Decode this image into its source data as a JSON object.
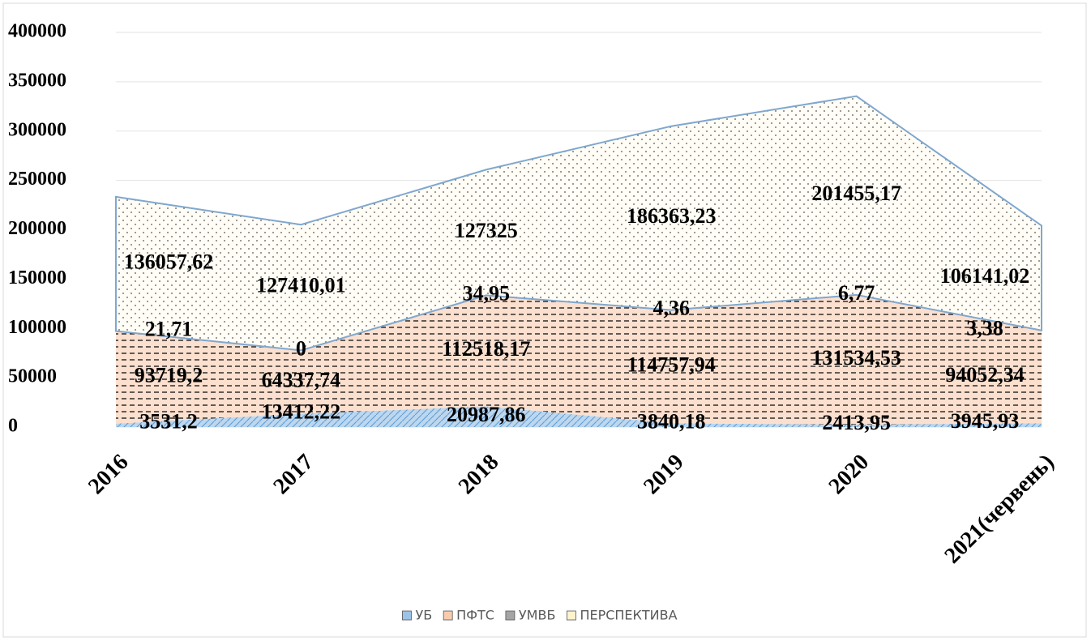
{
  "chart_data": {
    "type": "stacked_area",
    "categories": [
      "2016",
      "2017",
      "2018",
      "2019",
      "2020",
      "2021(червень)"
    ],
    "series": [
      {
        "name": "УБ",
        "color": "#9dc3e6",
        "values": [
          3531.2,
          13412.22,
          20987.86,
          3840.18,
          2413.95,
          3945.93
        ],
        "value_labels": [
          "3531,2",
          "13412,22",
          "20987,86",
          "3840,18",
          "2413,95",
          "3945,93"
        ]
      },
      {
        "name": "ПФТС",
        "color": "#f8cbad",
        "values": [
          93719.2,
          64337.74,
          112518.17,
          114757.94,
          131534.53,
          94052.34
        ],
        "value_labels": [
          "93719,2",
          "64337,74",
          "112518,17",
          "114757,94",
          "131534,53",
          "94052,34"
        ]
      },
      {
        "name": "УМВБ",
        "color": "#a5a5a5",
        "values": [
          21.71,
          0,
          34.95,
          4.36,
          6.77,
          3.38
        ],
        "value_labels": [
          "21,71",
          "0",
          "34,95",
          "4,36",
          "6,77",
          "3,38"
        ]
      },
      {
        "name": "ПЕРСПЕКТИВА",
        "color": "#fff2cc",
        "values": [
          136057.62,
          127410.01,
          127325,
          186363.23,
          201455.17,
          106141.02
        ],
        "value_labels": [
          "136057,62",
          "127410,01",
          "127325",
          "186363,23",
          "201455,17",
          "106141,02"
        ]
      }
    ],
    "ylim": [
      0,
      400000
    ],
    "yticks": [
      0,
      50000,
      100000,
      150000,
      200000,
      250000,
      300000,
      350000,
      400000
    ],
    "grid": true,
    "legend": "bottom"
  }
}
